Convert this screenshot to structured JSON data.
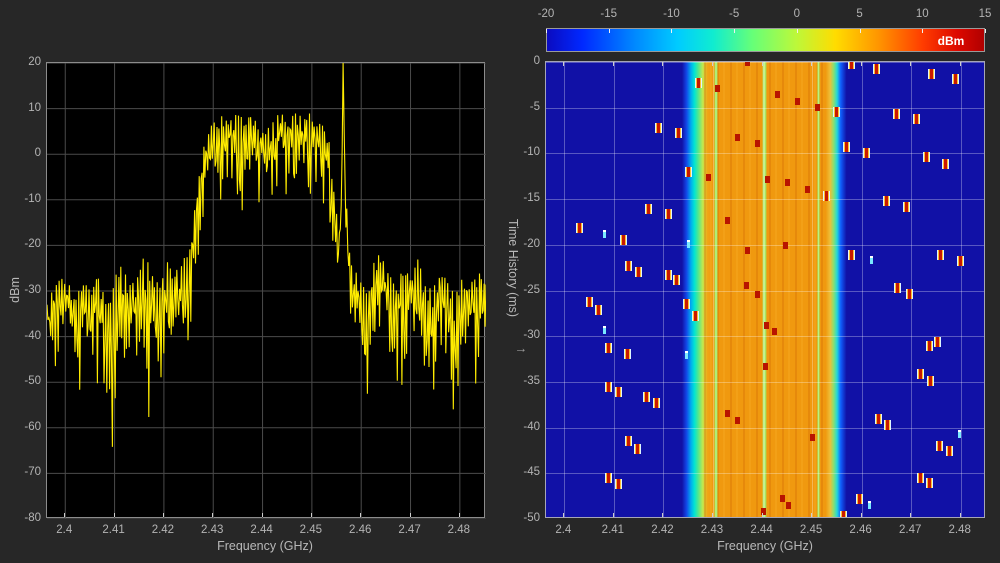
{
  "app": {
    "name": "spectrum-analyzer-view"
  },
  "colors": {
    "background": "#272727",
    "plot_bg": "#000000",
    "grid_left": "#4b4b4b",
    "grid_right": "rgba(255,255,255,0.3)",
    "axis_text": "#b4b4b4",
    "trace": "#ffec00",
    "spectrogram_bg": "#1111a6",
    "colorbar_label_color": "#ffffff"
  },
  "spectrum": {
    "xlabel": "Frequency (GHz)",
    "ylabel": "dBm",
    "xtick_labels": [
      "2.4",
      "2.41",
      "2.42",
      "2.43",
      "2.44",
      "2.45",
      "2.46",
      "2.47",
      "2.48"
    ],
    "xtick_values": [
      2.4,
      2.41,
      2.42,
      2.43,
      2.44,
      2.45,
      2.46,
      2.47,
      2.48
    ],
    "ytick_labels": [
      "20",
      "10",
      "0",
      "-10",
      "-20",
      "-30",
      "-40",
      "-50",
      "-60",
      "-70",
      "-80"
    ],
    "ytick_values": [
      20,
      10,
      0,
      -10,
      -20,
      -30,
      -40,
      -50,
      -60,
      -70,
      -80
    ]
  },
  "spectrogram": {
    "xlabel": "Frequency (GHz)",
    "ylabel": "Time History (ms)",
    "scroll_arrow": "→",
    "xtick_labels": [
      "2.4",
      "2.41",
      "2.42",
      "2.43",
      "2.44",
      "2.45",
      "2.46",
      "2.47",
      "2.48"
    ],
    "xtick_values": [
      2.4,
      2.41,
      2.42,
      2.43,
      2.44,
      2.45,
      2.46,
      2.47,
      2.48
    ],
    "ytick_labels": [
      "0",
      "-5",
      "-10",
      "-15",
      "-20",
      "-25",
      "-30",
      "-35",
      "-40",
      "-45",
      "-50"
    ],
    "ytick_values": [
      0,
      -5,
      -10,
      -15,
      -20,
      -25,
      -30,
      -35,
      -40,
      -45,
      -50
    ],
    "colorbar": {
      "label": "dBm",
      "tick_labels": [
        "-20",
        "-15",
        "-10",
        "-5",
        "0",
        "5",
        "10",
        "15"
      ],
      "tick_values": [
        -20,
        -15,
        -10,
        -5,
        0,
        5,
        10,
        15
      ],
      "range": [
        -20,
        15
      ],
      "colormap": "jet",
      "stops": [
        [
          0,
          "#0b0bc0"
        ],
        [
          8,
          "#0028ff"
        ],
        [
          20,
          "#0088ff"
        ],
        [
          30,
          "#00ccff"
        ],
        [
          38,
          "#10ecd0"
        ],
        [
          47,
          "#66ff78"
        ],
        [
          57,
          "#bcf83a"
        ],
        [
          66,
          "#ffdc00"
        ],
        [
          76,
          "#ff9400"
        ],
        [
          86,
          "#ff3c00"
        ],
        [
          94,
          "#dc0800"
        ],
        [
          100,
          "#b00000"
        ]
      ]
    }
  },
  "chart_data": [
    {
      "type": "line",
      "title": "RF spectrum trace",
      "xlabel": "Frequency (GHz)",
      "ylabel": "dBm",
      "xlim": [
        2.3963,
        2.4853
      ],
      "ylim": [
        -80,
        20
      ],
      "grid": true,
      "description": "Noisy spectrum: noise floor ~-40 dBm, main signal lobe ~+8 dBm from 2.428-2.454 GHz, narrow +20 dBm spike at 2.4564 GHz",
      "envelope_top": [
        [
          2.3963,
          -33
        ],
        [
          2.398,
          -28
        ],
        [
          2.4,
          -27
        ],
        [
          2.402,
          -31
        ],
        [
          2.4035,
          -27
        ],
        [
          2.405,
          -30
        ],
        [
          2.4065,
          -26
        ],
        [
          2.408,
          -31
        ],
        [
          2.41,
          -27
        ],
        [
          2.4115,
          -24
        ],
        [
          2.413,
          -29
        ],
        [
          2.4145,
          -26
        ],
        [
          2.416,
          -22
        ],
        [
          2.4175,
          -25
        ],
        [
          2.419,
          -29
        ],
        [
          2.4205,
          -22
        ],
        [
          2.422,
          -26
        ],
        [
          2.4235,
          -24
        ],
        [
          2.425,
          -21
        ],
        [
          2.4265,
          -10
        ],
        [
          2.4275,
          -2
        ],
        [
          2.4285,
          4
        ],
        [
          2.43,
          7
        ],
        [
          2.4315,
          8.5
        ],
        [
          2.433,
          7.5
        ],
        [
          2.4345,
          9
        ],
        [
          2.436,
          8
        ],
        [
          2.4375,
          9.3
        ],
        [
          2.439,
          7
        ],
        [
          2.4405,
          4.5
        ],
        [
          2.442,
          7.5
        ],
        [
          2.4435,
          9
        ],
        [
          2.445,
          8
        ],
        [
          2.4465,
          9.2
        ],
        [
          2.448,
          8.2
        ],
        [
          2.4495,
          9
        ],
        [
          2.451,
          7.5
        ],
        [
          2.4525,
          6.5
        ],
        [
          2.4535,
          3
        ],
        [
          2.4545,
          -8
        ],
        [
          2.4555,
          -18
        ],
        [
          2.456,
          -5
        ],
        [
          2.4564,
          20
        ],
        [
          2.4568,
          -8
        ],
        [
          2.458,
          -24
        ],
        [
          2.4595,
          -27
        ],
        [
          2.461,
          -30
        ],
        [
          2.4625,
          -24
        ],
        [
          2.464,
          -21
        ],
        [
          2.4655,
          -26
        ],
        [
          2.467,
          -29
        ],
        [
          2.4685,
          -24
        ],
        [
          2.47,
          -26
        ],
        [
          2.4715,
          -23
        ],
        [
          2.473,
          -28
        ],
        [
          2.4745,
          -30
        ],
        [
          2.476,
          -25
        ],
        [
          2.4775,
          -28
        ],
        [
          2.479,
          -31
        ],
        [
          2.4805,
          -27
        ],
        [
          2.482,
          -29
        ],
        [
          2.4835,
          -25
        ],
        [
          2.4853,
          -28
        ]
      ],
      "envelope_bottom": [
        [
          2.3963,
          -45
        ],
        [
          2.398,
          -52
        ],
        [
          2.4,
          -44
        ],
        [
          2.402,
          -50
        ],
        [
          2.4035,
          -56
        ],
        [
          2.405,
          -47
        ],
        [
          2.4065,
          -52
        ],
        [
          2.408,
          -58
        ],
        [
          2.4095,
          -68
        ],
        [
          2.411,
          -50
        ],
        [
          2.4125,
          -46
        ],
        [
          2.414,
          -53
        ],
        [
          2.4155,
          -48
        ],
        [
          2.417,
          -59
        ],
        [
          2.4185,
          -47
        ],
        [
          2.42,
          -53
        ],
        [
          2.4215,
          -59
        ],
        [
          2.423,
          -49
        ],
        [
          2.4245,
          -54
        ],
        [
          2.4255,
          -40
        ],
        [
          2.427,
          -25
        ],
        [
          2.4285,
          -12
        ],
        [
          2.43,
          -8
        ],
        [
          2.4315,
          -14
        ],
        [
          2.433,
          -6
        ],
        [
          2.4345,
          -12
        ],
        [
          2.436,
          -16
        ],
        [
          2.4375,
          -8
        ],
        [
          2.439,
          -13
        ],
        [
          2.4405,
          -9
        ],
        [
          2.442,
          -15
        ],
        [
          2.4435,
          -7
        ],
        [
          2.445,
          -13
        ],
        [
          2.4465,
          -16
        ],
        [
          2.448,
          -8
        ],
        [
          2.4495,
          -14
        ],
        [
          2.451,
          -10
        ],
        [
          2.4525,
          -16
        ],
        [
          2.4535,
          -20
        ],
        [
          2.4545,
          -28
        ],
        [
          2.4555,
          -30
        ],
        [
          2.456,
          -26
        ],
        [
          2.4564,
          -4
        ],
        [
          2.4568,
          -28
        ],
        [
          2.458,
          -38
        ],
        [
          2.4595,
          -45
        ],
        [
          2.461,
          -63
        ],
        [
          2.4625,
          -48
        ],
        [
          2.464,
          -42
        ],
        [
          2.4655,
          -50
        ],
        [
          2.467,
          -55
        ],
        [
          2.4685,
          -61
        ],
        [
          2.47,
          -46
        ],
        [
          2.4715,
          -44
        ],
        [
          2.473,
          -52
        ],
        [
          2.4745,
          -57
        ],
        [
          2.476,
          -47
        ],
        [
          2.4775,
          -53
        ],
        [
          2.479,
          -61
        ],
        [
          2.4805,
          -49
        ],
        [
          2.482,
          -45
        ],
        [
          2.4835,
          -55
        ],
        [
          2.4853,
          -44
        ]
      ],
      "forced_peaks": [
        [
          2.4564,
          20
        ]
      ],
      "noise_seed": 7
    },
    {
      "type": "heatmap",
      "title": "Spectrogram time history",
      "xlabel": "Frequency (GHz)",
      "ylabel": "Time History (ms)",
      "xlim": [
        2.3963,
        2.4851
      ],
      "ylim": [
        -50,
        0
      ],
      "value_range_dbm": [
        -20,
        15
      ],
      "background_level_dbm": -20,
      "band": {
        "freq_start": 2.4238,
        "freq_end": 2.457,
        "stops": [
          [
            2.4238,
            "#1111a6"
          ],
          [
            2.4247,
            "#1347e8"
          ],
          [
            2.4256,
            "#00aaf0"
          ],
          [
            2.4263,
            "#00e4d4"
          ],
          [
            2.4271,
            "#55e88a"
          ],
          [
            2.428,
            "#c2e84e"
          ],
          [
            2.4289,
            "#f0a616"
          ],
          [
            2.43,
            "#f0990f"
          ],
          [
            2.4528,
            "#f0990f"
          ],
          [
            2.4537,
            "#ecc03a"
          ],
          [
            2.4544,
            "#8ae070"
          ],
          [
            2.4551,
            "#22d8d8"
          ],
          [
            2.4558,
            "#1060ff"
          ],
          [
            2.457,
            "#1111a6"
          ]
        ],
        "green_stripes": [
          {
            "f": 2.4306,
            "w": 4
          },
          {
            "f": 2.4403,
            "w": 5
          },
          {
            "f": 2.4512,
            "w": 3
          }
        ],
        "stripe_color": "#9ce861"
      },
      "sparkles": [
        [
          2.458,
          -0.2,
          0
        ],
        [
          2.463,
          -0.8,
          0
        ],
        [
          2.474,
          -1.3,
          0
        ],
        [
          2.479,
          -1.8,
          0
        ],
        [
          2.427,
          -2.3,
          0
        ],
        [
          2.431,
          -2.9,
          2
        ],
        [
          2.437,
          -0.1,
          2
        ],
        [
          2.443,
          -3.6,
          2
        ],
        [
          2.447,
          -4.3,
          2
        ],
        [
          2.451,
          -5.0,
          2
        ],
        [
          2.455,
          -5.5,
          0
        ],
        [
          2.467,
          -5.7,
          0
        ],
        [
          2.471,
          -6.2,
          0
        ],
        [
          2.419,
          -7.2,
          0
        ],
        [
          2.423,
          -7.8,
          0
        ],
        [
          2.435,
          -8.3,
          2
        ],
        [
          2.439,
          -8.9,
          2
        ],
        [
          2.457,
          -9.3,
          0
        ],
        [
          2.461,
          -10.0,
          0
        ],
        [
          2.473,
          -10.4,
          0
        ],
        [
          2.477,
          -11.1,
          0
        ],
        [
          2.425,
          -12.0,
          0
        ],
        [
          2.429,
          -12.6,
          2
        ],
        [
          2.441,
          -12.8,
          2
        ],
        [
          2.445,
          -13.2,
          2
        ],
        [
          2.449,
          -13.9,
          2
        ],
        [
          2.453,
          -14.7,
          0
        ],
        [
          2.465,
          -15.2,
          0
        ],
        [
          2.469,
          -15.9,
          0
        ],
        [
          2.417,
          -16.1,
          0
        ],
        [
          2.421,
          -16.6,
          0
        ],
        [
          2.433,
          -17.3,
          2
        ],
        [
          2.403,
          -18.2,
          0
        ],
        [
          2.408,
          -18.8,
          1
        ],
        [
          2.412,
          -19.5,
          0
        ],
        [
          2.425,
          -19.9,
          1
        ],
        [
          2.437,
          -20.6,
          2
        ],
        [
          2.4446,
          -20.1,
          2
        ],
        [
          2.458,
          -21.1,
          0
        ],
        [
          2.462,
          -21.7,
          1
        ],
        [
          2.476,
          -21.1,
          0
        ],
        [
          2.48,
          -21.8,
          0
        ],
        [
          2.413,
          -22.3,
          0
        ],
        [
          2.415,
          -23.0,
          0
        ],
        [
          2.421,
          -23.3,
          0
        ],
        [
          2.4227,
          -23.9,
          0
        ],
        [
          2.405,
          -26.3,
          0
        ],
        [
          2.4068,
          -27.1,
          0
        ],
        [
          2.4367,
          -24.4,
          2
        ],
        [
          2.4389,
          -25.4,
          2
        ],
        [
          2.408,
          -29.3,
          1
        ],
        [
          2.4246,
          -26.5,
          0
        ],
        [
          2.4264,
          -27.8,
          0
        ],
        [
          2.4407,
          -28.8,
          2
        ],
        [
          2.4425,
          -29.5,
          2
        ],
        [
          2.4673,
          -24.7,
          0
        ],
        [
          2.4696,
          -25.4,
          0
        ],
        [
          2.4754,
          -30.6,
          0
        ],
        [
          2.4736,
          -31.1,
          0
        ],
        [
          2.4089,
          -31.3,
          0
        ],
        [
          2.4127,
          -31.9,
          0
        ],
        [
          2.4405,
          -33.3,
          2
        ],
        [
          2.4246,
          -32.0,
          1
        ],
        [
          2.4718,
          -34.1,
          0
        ],
        [
          2.4738,
          -34.9,
          0
        ],
        [
          2.4089,
          -35.6,
          0
        ],
        [
          2.4109,
          -36.1,
          0
        ],
        [
          2.4165,
          -36.6,
          0
        ],
        [
          2.4185,
          -37.3,
          0
        ],
        [
          2.433,
          -38.5,
          2
        ],
        [
          2.435,
          -39.2,
          2
        ],
        [
          2.4633,
          -39.0,
          0
        ],
        [
          2.4653,
          -39.7,
          0
        ],
        [
          2.4798,
          -40.7,
          1
        ],
        [
          2.4129,
          -41.5,
          0
        ],
        [
          2.4147,
          -42.3,
          0
        ],
        [
          2.45,
          -41.1,
          2
        ],
        [
          2.4758,
          -42.0,
          0
        ],
        [
          2.4777,
          -42.6,
          0
        ],
        [
          2.4089,
          -45.5,
          0
        ],
        [
          2.4109,
          -46.2,
          0
        ],
        [
          2.4718,
          -45.5,
          0
        ],
        [
          2.4736,
          -46.1,
          0
        ],
        [
          2.4441,
          -47.8,
          2
        ],
        [
          2.4452,
          -48.5,
          2
        ],
        [
          2.4595,
          -47.8,
          0
        ],
        [
          2.4615,
          -48.5,
          1
        ],
        [
          2.4401,
          -49.2,
          2
        ],
        [
          2.4564,
          -49.7,
          0
        ]
      ],
      "sparkle_kinds": [
        "hot-packet",
        "cool-packet",
        "red-dot"
      ]
    }
  ]
}
